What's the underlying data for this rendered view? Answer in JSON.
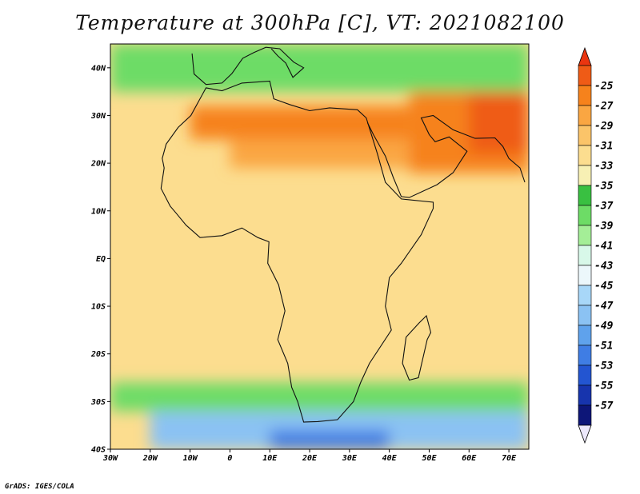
{
  "title": "Temperature at 300hPa [C], VT: 2021082100",
  "credit": "GrADS: IGES/COLA",
  "map": {
    "projection": "lat-lon",
    "lon_range": [
      -30,
      75
    ],
    "lat_range": [
      -40,
      45
    ],
    "lat_ticks": [
      {
        "value": 40,
        "label": "40N"
      },
      {
        "value": 30,
        "label": "30N"
      },
      {
        "value": 20,
        "label": "20N"
      },
      {
        "value": 10,
        "label": "10N"
      },
      {
        "value": 0,
        "label": "EQ"
      },
      {
        "value": -10,
        "label": "10S"
      },
      {
        "value": -20,
        "label": "20S"
      },
      {
        "value": -30,
        "label": "30S"
      },
      {
        "value": -40,
        "label": "40S"
      }
    ],
    "lon_ticks": [
      {
        "value": -30,
        "label": "30W"
      },
      {
        "value": -20,
        "label": "20W"
      },
      {
        "value": -10,
        "label": "10W"
      },
      {
        "value": 0,
        "label": "0"
      },
      {
        "value": 10,
        "label": "10E"
      },
      {
        "value": 20,
        "label": "20E"
      },
      {
        "value": 30,
        "label": "30E"
      },
      {
        "value": 40,
        "label": "40E"
      },
      {
        "value": 50,
        "label": "50E"
      },
      {
        "value": 60,
        "label": "60E"
      },
      {
        "value": 70,
        "label": "70E"
      }
    ]
  },
  "colorbar": {
    "labels": [
      "-25",
      "-27",
      "-29",
      "-31",
      "-33",
      "-35",
      "-37",
      "-39",
      "-41",
      "-43",
      "-45",
      "-47",
      "-49",
      "-51",
      "-53",
      "-55",
      "-57"
    ],
    "top_arrow_color": "#ea3510",
    "bottom_arrow_color": "#ece8fb",
    "colors": [
      "#ef5b16",
      "#f6821c",
      "#faa642",
      "#fbc469",
      "#fcdd8f",
      "#f7f0b4",
      "#39c041",
      "#6ddc66",
      "#a4ee97",
      "#d8f8e9",
      "#ecf7fb",
      "#a8d7f8",
      "#8bc2f3",
      "#5fa2ec",
      "#3f7de4",
      "#2355d1",
      "#1734ad",
      "#0d1678"
    ]
  },
  "field_bands": [
    {
      "name": "warm-north-africa",
      "color": "#f6821c",
      "lon": [
        -10,
        45
      ],
      "lat": [
        25,
        32
      ]
    },
    {
      "name": "warm-sahara-strip",
      "color": "#faa642",
      "lon": [
        0,
        45
      ],
      "lat": [
        19,
        25
      ]
    },
    {
      "name": "warm-arabia-iran",
      "color": "#f6821c",
      "lon": [
        45,
        75
      ],
      "lat": [
        18,
        35
      ]
    },
    {
      "name": "hot-iran-pakistan",
      "color": "#ef5b16",
      "lon": [
        60,
        75
      ],
      "lat": [
        22,
        35
      ]
    },
    {
      "name": "green-mediterranean",
      "color": "#6ddc66",
      "lon": [
        -30,
        75
      ],
      "lat": [
        35,
        45
      ]
    },
    {
      "name": "green-south-band",
      "color": "#6ddc66",
      "lon": [
        -30,
        75
      ],
      "lat": [
        -32,
        -26
      ]
    },
    {
      "name": "cold-southern-ocean",
      "color": "#8bc2f3",
      "lon": [
        -20,
        75
      ],
      "lat": [
        -40,
        -32
      ]
    },
    {
      "name": "deep-cold-core",
      "color": "#3f7de4",
      "lon": [
        10,
        40
      ],
      "lat": [
        -40,
        -36
      ]
    }
  ]
}
